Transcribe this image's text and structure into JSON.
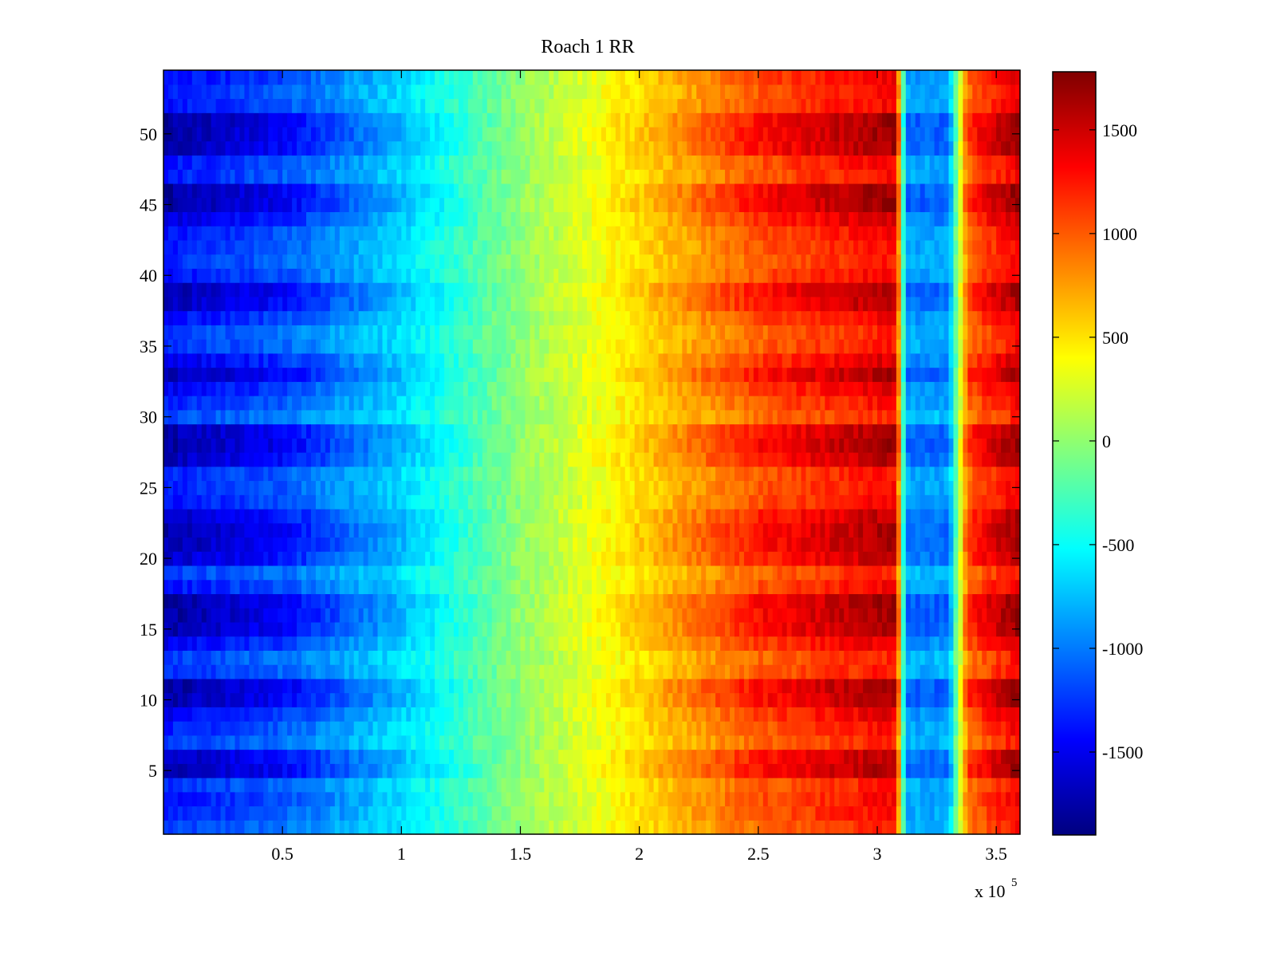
{
  "chart_data": {
    "type": "heatmap",
    "title": "Roach 1 RR",
    "xlabel": "",
    "ylabel": "",
    "x_exponent_label": "x 10",
    "x_exponent_power": "5",
    "xlim": [
      0,
      3.6
    ],
    "ylim": [
      0.5,
      54.5
    ],
    "x_ticks": [
      0.5,
      1,
      1.5,
      2,
      2.5,
      3,
      3.5
    ],
    "x_tick_labels": [
      "0.5",
      "1",
      "1.5",
      "2",
      "2.5",
      "3",
      "3.5"
    ],
    "y_ticks": [
      5,
      10,
      15,
      20,
      25,
      30,
      35,
      40,
      45,
      50
    ],
    "y_tick_labels": [
      "5",
      "10",
      "15",
      "20",
      "25",
      "30",
      "35",
      "40",
      "45",
      "50"
    ],
    "rows": 54,
    "colorbar": {
      "colormap": "jet",
      "min": -1900,
      "max": 1780,
      "ticks": [
        -1500,
        -1000,
        -500,
        0,
        500,
        1000,
        1500
      ],
      "tick_labels": [
        "-1500",
        "-1000",
        "-500",
        "0",
        "500",
        "1000",
        "1500"
      ]
    },
    "profile_description_values": {
      "x_breakpoints": [
        0,
        0.5,
        1.0,
        1.5,
        2.0,
        2.5,
        3.0,
        3.08,
        3.12,
        3.3,
        3.38,
        3.45,
        3.6
      ],
      "strong_row_values": [
        -1800,
        -1500,
        -800,
        0,
        600,
        1300,
        1650,
        1700,
        -1100,
        -1100,
        1200,
        1400,
        1750
      ],
      "weak_row_values": [
        -800,
        -650,
        -450,
        0,
        400,
        650,
        800,
        800,
        -500,
        -500,
        600,
        700,
        900
      ],
      "row_strength": [
        0.45,
        0.55,
        0.6,
        0.5,
        0.95,
        0.9,
        0.45,
        0.55,
        0.7,
        0.95,
        1.0,
        0.5,
        0.45,
        0.7,
        0.95,
        1.0,
        1.0,
        0.6,
        0.45,
        0.85,
        0.95,
        0.95,
        0.85,
        0.6,
        0.55,
        0.55,
        0.9,
        1.0,
        0.95,
        0.4,
        0.55,
        0.7,
        0.95,
        0.75,
        0.5,
        0.45,
        0.65,
        0.9,
        0.95,
        0.6,
        0.5,
        0.55,
        0.6,
        0.8,
        1.0,
        1.0,
        0.55,
        0.6,
        0.95,
        1.0,
        1.0,
        0.6,
        0.55,
        0.65
      ]
    }
  }
}
